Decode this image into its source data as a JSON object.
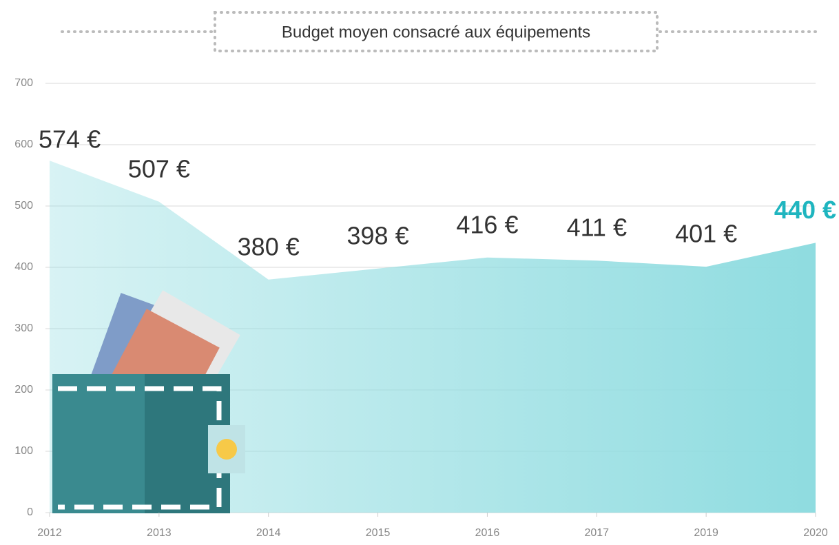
{
  "chart_data": {
    "type": "area",
    "title": "Budget moyen consacré aux équipements",
    "categories": [
      "2012",
      "2013",
      "2014",
      "2015",
      "2016",
      "2017",
      "2019",
      "2020"
    ],
    "values": [
      574,
      507,
      380,
      398,
      416,
      411,
      401,
      440
    ],
    "value_labels": [
      "574 €",
      "507 €",
      "380 €",
      "398 €",
      "416 €",
      "411 €",
      "401 €",
      "440 €"
    ],
    "color": "#8fdce0",
    "highlight_color": "#1fb5bf",
    "ylim": [
      0,
      700
    ],
    "yticks": [
      0,
      100,
      200,
      300,
      400,
      500,
      600,
      700
    ],
    "grid": true
  }
}
